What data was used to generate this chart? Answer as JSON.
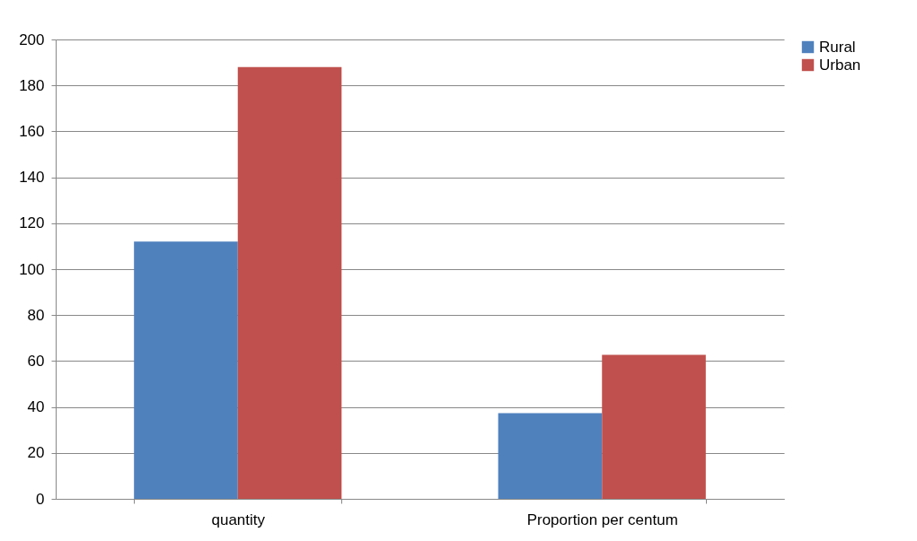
{
  "chart_data": {
    "type": "bar",
    "categories": [
      "quantity",
      "Proportion per centum"
    ],
    "series": [
      {
        "name": "Rural",
        "color": "#4f81bd",
        "values": [
          112,
          37.3
        ]
      },
      {
        "name": "Urban",
        "color": "#c0504d",
        "values": [
          188,
          62.7
        ]
      }
    ],
    "ylim": [
      0,
      200
    ],
    "yticks": [
      0,
      20,
      40,
      60,
      80,
      100,
      120,
      140,
      160,
      180,
      200
    ],
    "grid": "y",
    "legend": "right"
  }
}
